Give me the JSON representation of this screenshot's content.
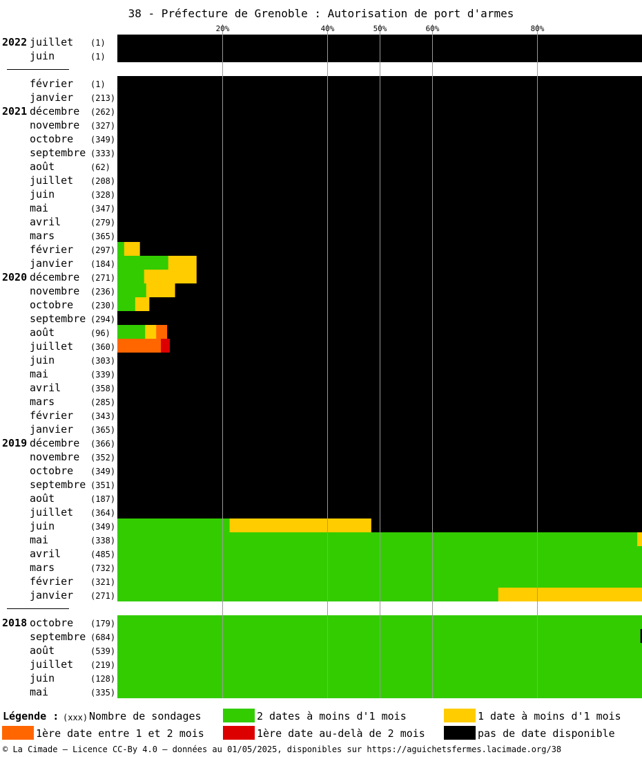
{
  "chart_data": {
    "type": "bar",
    "stacked": true,
    "orientation": "horizontal",
    "title": "38 - Préfecture de Grenoble : Autorisation de port d'armes",
    "xlim": [
      0,
      100
    ],
    "grid": true,
    "ticks": [
      {
        "value": 20,
        "label": "20%"
      },
      {
        "value": 40,
        "label": "40%"
      },
      {
        "value": 50,
        "label": "50%"
      },
      {
        "value": 60,
        "label": "60%"
      },
      {
        "value": 80,
        "label": "80%"
      }
    ],
    "series": [
      {
        "key": "green",
        "color": "#33cc00"
      },
      {
        "key": "yellow",
        "color": "#ffcc00"
      },
      {
        "key": "orange",
        "color": "#ff6600"
      },
      {
        "key": "red",
        "color": "#dd0000"
      },
      {
        "key": "black",
        "color": "#000000"
      }
    ],
    "groups": [
      {
        "year": "2022",
        "rows": [
          {
            "month": "juillet",
            "count": "(1)",
            "year": "2022",
            "values": [
              0,
              0,
              0,
              0,
              100
            ]
          },
          {
            "month": "juin",
            "count": "(1)",
            "values": [
              0,
              0,
              0,
              0,
              100
            ]
          }
        ]
      },
      {
        "year": "2021",
        "rows": [
          {
            "month": "février",
            "count": "(1)",
            "values": [
              0,
              0,
              0,
              0,
              100
            ]
          },
          {
            "month": "janvier",
            "count": "(213)",
            "values": [
              0,
              0,
              0,
              0,
              100
            ]
          },
          {
            "month": "décembre",
            "count": "(262)",
            "year": "2021",
            "values": [
              0,
              0,
              0,
              0,
              100
            ]
          },
          {
            "month": "novembre",
            "count": "(327)",
            "values": [
              0,
              0,
              0,
              0,
              100
            ]
          },
          {
            "month": "octobre",
            "count": "(349)",
            "values": [
              0,
              0,
              0,
              0,
              100
            ]
          },
          {
            "month": "septembre",
            "count": "(333)",
            "values": [
              0,
              0,
              0,
              0,
              100
            ]
          },
          {
            "month": "août",
            "count": "(62)",
            "values": [
              0,
              0,
              0,
              0,
              100
            ]
          },
          {
            "month": "juillet",
            "count": "(208)",
            "values": [
              0,
              0,
              0,
              0,
              100
            ]
          },
          {
            "month": "juin",
            "count": "(328)",
            "values": [
              0,
              0,
              0,
              0,
              100
            ]
          },
          {
            "month": "mai",
            "count": "(347)",
            "values": [
              0,
              0,
              0,
              0,
              100
            ]
          },
          {
            "month": "avril",
            "count": "(279)",
            "values": [
              0,
              0,
              0,
              0,
              100
            ]
          },
          {
            "month": "mars",
            "count": "(365)",
            "values": [
              0,
              0,
              0,
              0,
              100
            ]
          },
          {
            "month": "février",
            "count": "(297)",
            "values": [
              1.3,
              3.0,
              0,
              0,
              95.7
            ]
          },
          {
            "month": "janvier",
            "count": "(184)",
            "values": [
              9.7,
              5.4,
              0,
              0,
              84.9
            ]
          },
          {
            "month": "décembre",
            "count": "(271)",
            "year": "2020",
            "values": [
              5.1,
              10.0,
              0,
              0,
              84.9
            ]
          },
          {
            "month": "novembre",
            "count": "(236)",
            "values": [
              5.5,
              5.5,
              0,
              0,
              89.0
            ]
          },
          {
            "month": "octobre",
            "count": "(230)",
            "values": [
              3.4,
              2.7,
              0,
              0,
              93.9
            ]
          },
          {
            "month": "septembre",
            "count": "(294)",
            "values": [
              0,
              0,
              0,
              0,
              100
            ]
          },
          {
            "month": "août",
            "count": "(96)",
            "values": [
              5.3,
              2.1,
              2.1,
              0,
              90.5
            ]
          },
          {
            "month": "juillet",
            "count": "(360)",
            "values": [
              0,
              0,
              8.3,
              1.7,
              90.0
            ]
          },
          {
            "month": "juin",
            "count": "(303)",
            "values": [
              0,
              0,
              0,
              0,
              100
            ]
          },
          {
            "month": "mai",
            "count": "(339)",
            "values": [
              0,
              0,
              0,
              0,
              100
            ]
          },
          {
            "month": "avril",
            "count": "(358)",
            "values": [
              0,
              0,
              0,
              0,
              100
            ]
          },
          {
            "month": "mars",
            "count": "(285)",
            "values": [
              0,
              0,
              0,
              0,
              100
            ]
          },
          {
            "month": "février",
            "count": "(343)",
            "values": [
              0,
              0,
              0,
              0,
              100
            ]
          },
          {
            "month": "janvier",
            "count": "(365)",
            "values": [
              0,
              0,
              0,
              0,
              100
            ]
          },
          {
            "month": "décembre",
            "count": "(366)",
            "year": "2019",
            "values": [
              0,
              0,
              0,
              0,
              100
            ]
          },
          {
            "month": "novembre",
            "count": "(352)",
            "values": [
              0,
              0,
              0,
              0,
              100
            ]
          },
          {
            "month": "octobre",
            "count": "(349)",
            "values": [
              0,
              0,
              0,
              0,
              100
            ]
          },
          {
            "month": "septembre",
            "count": "(351)",
            "values": [
              0,
              0,
              0,
              0,
              100
            ]
          },
          {
            "month": "août",
            "count": "(187)",
            "values": [
              0,
              0,
              0,
              0,
              100
            ]
          },
          {
            "month": "juillet",
            "count": "(364)",
            "values": [
              0,
              0,
              0,
              0,
              100
            ]
          },
          {
            "month": "juin",
            "count": "(349)",
            "values": [
              21.4,
              27.0,
              0,
              0,
              51.6
            ]
          },
          {
            "month": "mai",
            "count": "(338)",
            "values": [
              99.1,
              0.9,
              0,
              0,
              0
            ]
          },
          {
            "month": "avril",
            "count": "(485)",
            "values": [
              100,
              0,
              0,
              0,
              0
            ]
          },
          {
            "month": "mars",
            "count": "(732)",
            "values": [
              100,
              0,
              0,
              0,
              0
            ]
          },
          {
            "month": "février",
            "count": "(321)",
            "values": [
              100,
              0,
              0,
              0,
              0
            ]
          },
          {
            "month": "janvier",
            "count": "(271)",
            "values": [
              72.6,
              27.4,
              0,
              0,
              0
            ]
          }
        ]
      },
      {
        "year": "2018",
        "rows": [
          {
            "month": "octobre",
            "count": "(179)",
            "year": "2018",
            "values": [
              100,
              0,
              0,
              0,
              0
            ]
          },
          {
            "month": "septembre",
            "count": "(684)",
            "values": [
              99.7,
              0,
              0,
              0,
              0.3
            ]
          },
          {
            "month": "août",
            "count": "(539)",
            "values": [
              100,
              0,
              0,
              0,
              0
            ]
          },
          {
            "month": "juillet",
            "count": "(219)",
            "values": [
              100,
              0,
              0,
              0,
              0
            ]
          },
          {
            "month": "juin",
            "count": "(128)",
            "values": [
              100,
              0,
              0,
              0,
              0
            ]
          },
          {
            "month": "mai",
            "count": "(335)",
            "values": [
              100,
              0,
              0,
              0,
              0
            ]
          }
        ]
      }
    ]
  },
  "legend": {
    "title": "Légende :",
    "count_marker": "(xxx)",
    "count_label": "Nombre de sondages",
    "items": [
      {
        "color": "#33cc00",
        "label": "2 dates à moins d'1 mois"
      },
      {
        "color": "#ffcc00",
        "label": "1 date à moins d'1 mois"
      },
      {
        "color": "#ff6600",
        "label": "1ère date entre 1 et 2 mois"
      },
      {
        "color": "#dd0000",
        "label": "1ère date au-delà de 2 mois"
      },
      {
        "color": "#000000",
        "label": "pas de date disponible"
      }
    ]
  },
  "footer": "© La Cimade — Licence CC-By 4.0 — données au 01/05/2025, disponibles sur https://aguichetsfermes.lacimade.org/38"
}
